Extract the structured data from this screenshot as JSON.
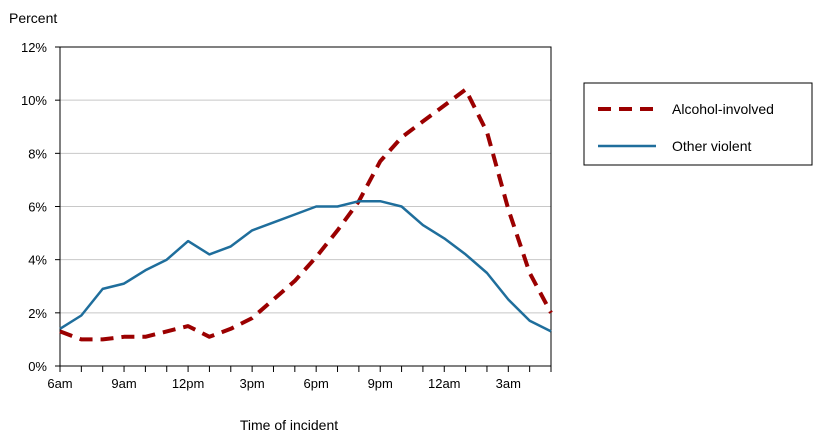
{
  "chart_data": {
    "type": "line",
    "title": "",
    "ylabel": "Percent",
    "xlabel": "Time of incident",
    "ylim": [
      0,
      12
    ],
    "y_ticks": [
      0,
      2,
      4,
      6,
      8,
      10,
      12
    ],
    "y_tick_labels": [
      "0%",
      "2%",
      "4%",
      "6%",
      "8%",
      "10%",
      "12%"
    ],
    "x_tick_labels": [
      "6am",
      "9am",
      "12pm",
      "3pm",
      "6pm",
      "9pm",
      "12am",
      "3am"
    ],
    "x_hours": [
      "6am",
      "7am",
      "8am",
      "9am",
      "10am",
      "11am",
      "12pm",
      "1pm",
      "2pm",
      "3pm",
      "4pm",
      "5pm",
      "6pm",
      "7pm",
      "8pm",
      "9pm",
      "10pm",
      "11pm",
      "12am",
      "1am",
      "2am",
      "3am",
      "4am",
      "5am"
    ],
    "grid": true,
    "legend_placement": "right",
    "series": [
      {
        "name": "Alcohol-involved",
        "color": "#9b0000",
        "style": "dashed",
        "values": [
          1.3,
          1.0,
          1.0,
          1.1,
          1.1,
          1.3,
          1.5,
          1.1,
          1.4,
          1.8,
          2.5,
          3.2,
          4.1,
          5.1,
          6.2,
          7.7,
          8.6,
          9.2,
          9.8,
          10.4,
          8.8,
          5.9,
          3.5,
          2.0
        ]
      },
      {
        "name": "Other violent",
        "color": "#1f6e9c",
        "style": "solid",
        "values": [
          1.4,
          1.9,
          2.9,
          3.1,
          3.6,
          4.0,
          4.7,
          4.2,
          4.5,
          5.1,
          5.4,
          5.7,
          6.0,
          6.0,
          6.2,
          6.2,
          6.0,
          5.3,
          4.8,
          4.2,
          3.5,
          2.5,
          1.7,
          1.3
        ]
      }
    ]
  }
}
